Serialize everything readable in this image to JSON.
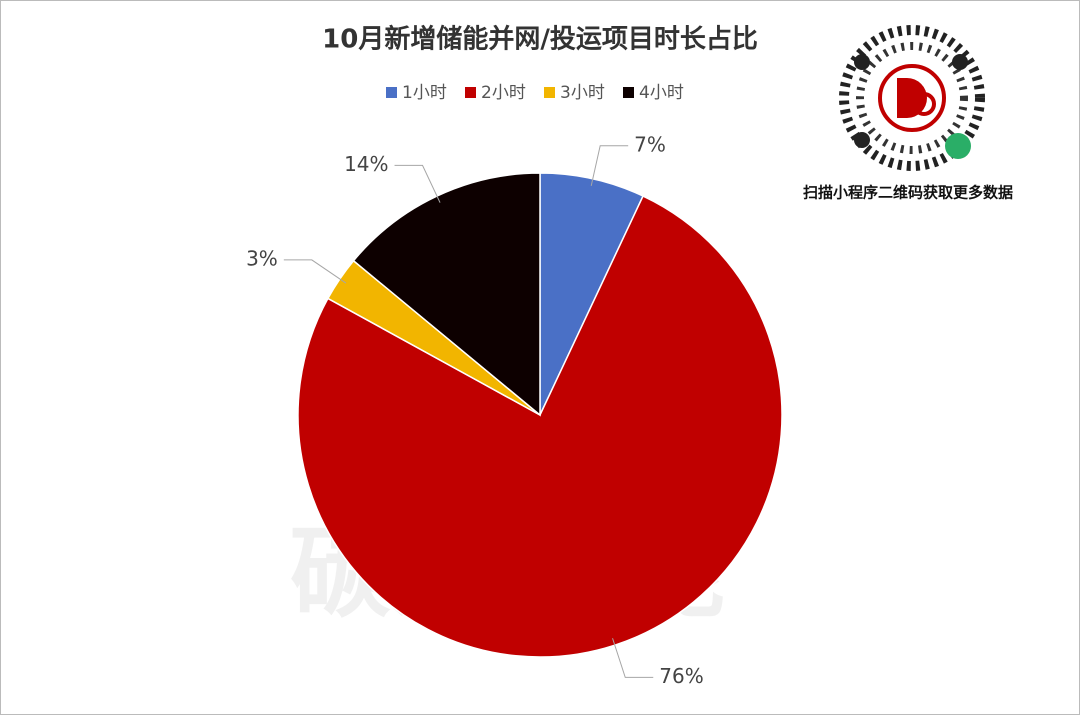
{
  "chart_data": {
    "type": "pie",
    "title": "10月新增储能并网/投运项目时长占比",
    "categories": [
      "1小时",
      "2小时",
      "3小时",
      "4小时"
    ],
    "values": [
      7,
      76,
      3,
      14
    ],
    "value_labels": [
      "7%",
      "76%",
      "3%",
      "14%"
    ],
    "colors": [
      "#4a70c6",
      "#c00000",
      "#f2b500",
      "#0d0000"
    ],
    "legend": "top"
  },
  "watermark": "碳索 储能",
  "qr_caption": "扫描小程序二维码获取更多数据"
}
